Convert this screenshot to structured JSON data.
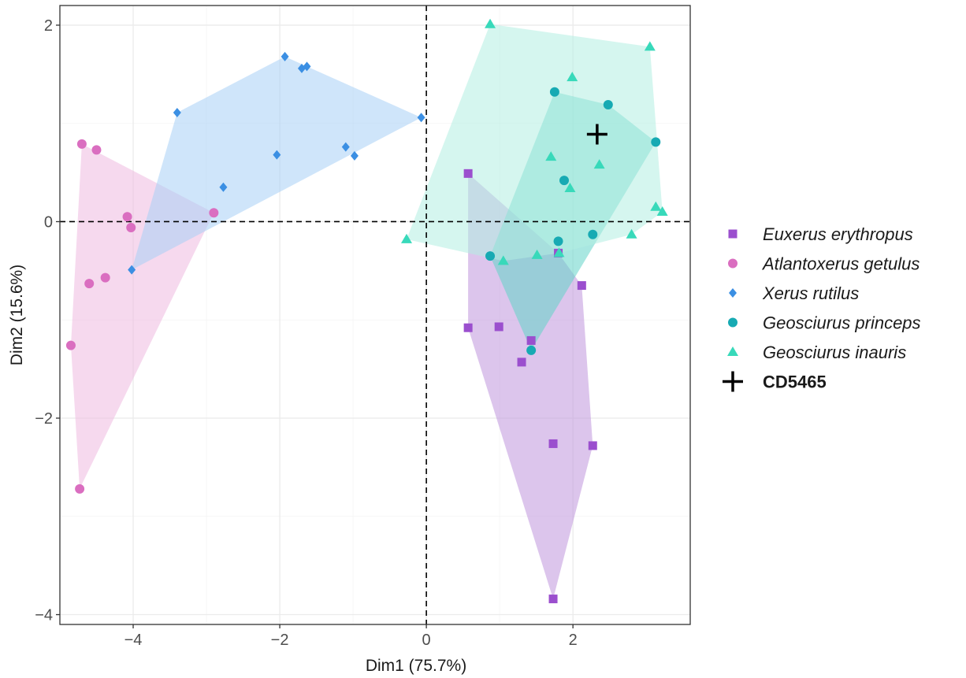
{
  "chart_data": {
    "type": "scatter",
    "title": "",
    "xlabel": "Dim1 (75.7%)",
    "ylabel": "Dim2 (15.6%)",
    "xlim": [
      -5.0,
      3.6
    ],
    "ylim": [
      -4.1,
      2.2
    ],
    "xticks": [
      -4,
      -2,
      0,
      2
    ],
    "xtick_labels": [
      "−4",
      "−2",
      "0",
      "2"
    ],
    "yticks": [
      -4,
      -2,
      0,
      2
    ],
    "ytick_labels": [
      "−4",
      "−2",
      "0",
      "2"
    ],
    "grid": true,
    "reference_lines": {
      "x": 0,
      "y": 0,
      "style": "dashed"
    },
    "legend_position": "right",
    "series": [
      {
        "name": "Euxerus erythropus",
        "color": "#9b4fce",
        "fill": "#bf96dc",
        "marker": "square",
        "points": [
          [
            0.57,
            0.49
          ],
          [
            1.8,
            -0.32
          ],
          [
            2.12,
            -0.65
          ],
          [
            0.57,
            -1.08
          ],
          [
            0.99,
            -1.07
          ],
          [
            1.43,
            -1.21
          ],
          [
            1.3,
            -1.43
          ],
          [
            1.73,
            -2.26
          ],
          [
            2.27,
            -2.28
          ],
          [
            1.73,
            -3.84
          ]
        ],
        "hull": [
          [
            0.57,
            0.49
          ],
          [
            1.8,
            -0.32
          ],
          [
            2.12,
            -0.65
          ],
          [
            2.27,
            -2.28
          ],
          [
            1.73,
            -3.84
          ],
          [
            0.57,
            -1.08
          ]
        ]
      },
      {
        "name": "Atlantoxerus getulus",
        "color": "#da6ec0",
        "fill": "#eeb9e0",
        "marker": "circle",
        "points": [
          [
            -4.7,
            0.79
          ],
          [
            -4.5,
            0.73
          ],
          [
            -4.08,
            0.05
          ],
          [
            -4.03,
            -0.06
          ],
          [
            -2.9,
            0.09
          ],
          [
            -4.38,
            -0.57
          ],
          [
            -4.6,
            -0.63
          ],
          [
            -4.85,
            -1.26
          ],
          [
            -4.73,
            -2.72
          ]
        ],
        "hull": [
          [
            -4.7,
            0.79
          ],
          [
            -2.9,
            0.09
          ],
          [
            -4.73,
            -2.72
          ],
          [
            -4.85,
            -1.26
          ]
        ]
      },
      {
        "name": "Xerus rutilus",
        "color": "#3b8fe3",
        "fill": "#a7d0f5",
        "marker": "diamond",
        "points": [
          [
            -1.93,
            1.68
          ],
          [
            -1.7,
            1.56
          ],
          [
            -1.63,
            1.58
          ],
          [
            -3.4,
            1.11
          ],
          [
            -0.07,
            1.06
          ],
          [
            -1.1,
            0.76
          ],
          [
            -0.98,
            0.67
          ],
          [
            -2.04,
            0.68
          ],
          [
            -2.77,
            0.35
          ],
          [
            -4.02,
            -0.49
          ]
        ],
        "hull": [
          [
            -1.93,
            1.68
          ],
          [
            -0.07,
            1.06
          ],
          [
            -4.02,
            -0.49
          ],
          [
            -3.4,
            1.11
          ]
        ]
      },
      {
        "name": "Geosciurus princeps",
        "color": "#17aab3",
        "fill": "#62d4c8",
        "marker": "circle",
        "points": [
          [
            1.75,
            1.32
          ],
          [
            2.48,
            1.19
          ],
          [
            3.13,
            0.81
          ],
          [
            1.88,
            0.42
          ],
          [
            2.27,
            -0.13
          ],
          [
            1.8,
            -0.2
          ],
          [
            0.87,
            -0.35
          ],
          [
            1.43,
            -1.31
          ]
        ],
        "hull": [
          [
            1.75,
            1.32
          ],
          [
            2.48,
            1.19
          ],
          [
            3.13,
            0.81
          ],
          [
            1.43,
            -1.31
          ],
          [
            0.87,
            -0.35
          ]
        ]
      },
      {
        "name": "Geosciurus inauris",
        "color": "#38d9ba",
        "fill": "#b2eee2",
        "marker": "triangle",
        "points": [
          [
            0.87,
            2.01
          ],
          [
            3.05,
            1.78
          ],
          [
            1.99,
            1.47
          ],
          [
            1.7,
            0.66
          ],
          [
            2.36,
            0.58
          ],
          [
            1.96,
            0.34
          ],
          [
            3.13,
            0.15
          ],
          [
            3.22,
            0.1
          ],
          [
            2.8,
            -0.13
          ],
          [
            -0.27,
            -0.18
          ],
          [
            1.05,
            -0.4
          ],
          [
            1.51,
            -0.34
          ],
          [
            1.81,
            -0.32
          ]
        ],
        "hull": [
          [
            0.87,
            2.01
          ],
          [
            3.05,
            1.78
          ],
          [
            3.22,
            0.1
          ],
          [
            2.8,
            -0.13
          ],
          [
            1.81,
            -0.32
          ],
          [
            1.05,
            -0.4
          ],
          [
            -0.27,
            -0.18
          ]
        ]
      },
      {
        "name": "CD5465",
        "color": "#000000",
        "marker": "cross",
        "points": [
          [
            2.33,
            0.89
          ]
        ]
      }
    ]
  }
}
